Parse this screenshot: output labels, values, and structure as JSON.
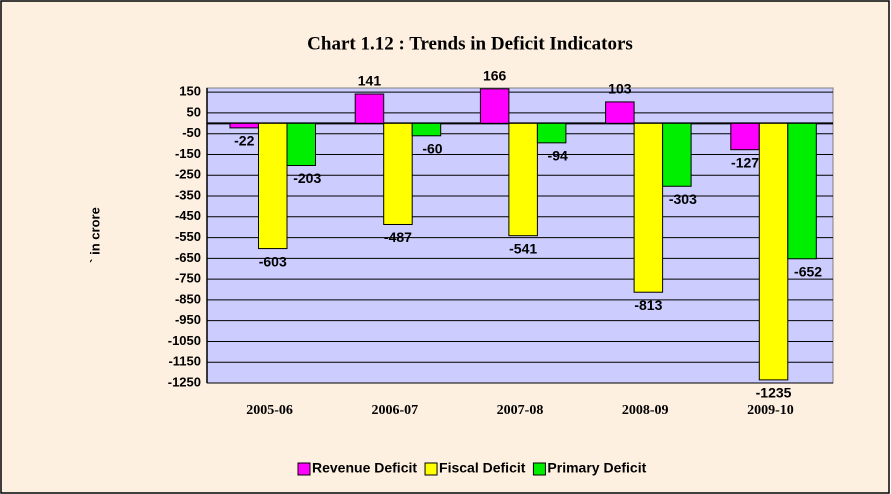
{
  "chart_data": {
    "type": "bar",
    "title": "Chart 1.12 : Trends in Deficit Indicators",
    "ylabel": "` in crore",
    "categories": [
      "2005-06",
      "2006-07",
      "2007-08",
      "2008-09",
      "2009-10"
    ],
    "series": [
      {
        "name": "Revenue Deficit",
        "color": "#ff00ff",
        "values": [
          -22,
          141,
          166,
          103,
          -127
        ]
      },
      {
        "name": "Fiscal Deficit",
        "color": "#ffff00",
        "values": [
          -603,
          -487,
          -541,
          -813,
          -1235
        ]
      },
      {
        "name": "Primary Deficit",
        "color": "#00ee00",
        "values": [
          -203,
          -60,
          -94,
          -303,
          -652
        ]
      }
    ],
    "ylim": [
      -1250,
      170
    ],
    "yticks": [
      150,
      50,
      -50,
      -150,
      -250,
      -350,
      -450,
      -550,
      -650,
      -750,
      -850,
      -950,
      -1050,
      -1150,
      -1250
    ],
    "grid": true,
    "legend": "bottom"
  }
}
